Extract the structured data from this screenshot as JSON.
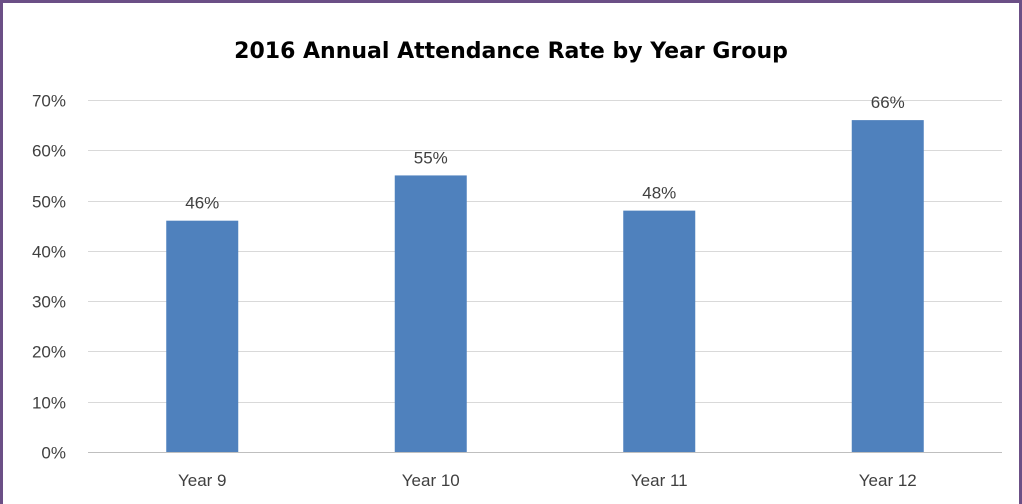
{
  "chart_data": {
    "type": "bar",
    "title": "2016 Annual Attendance Rate by Year Group",
    "categories": [
      "Year 9",
      "Year 10",
      "Year 11",
      "Year 12"
    ],
    "values": [
      0.46,
      0.55,
      0.48,
      0.66
    ],
    "data_labels": [
      "46%",
      "55%",
      "48%",
      "66%"
    ],
    "ylim": [
      0,
      0.7
    ],
    "yticks": [
      0,
      0.1,
      0.2,
      0.3,
      0.4,
      0.5,
      0.6,
      0.7
    ],
    "ytick_labels": [
      "0%",
      "10%",
      "20%",
      "30%",
      "40%",
      "50%",
      "60%",
      "70%"
    ],
    "xlabel": "",
    "ylabel": "",
    "grid": true,
    "bar_color": "#4f81bd",
    "frame_color": "#6b4f86"
  }
}
